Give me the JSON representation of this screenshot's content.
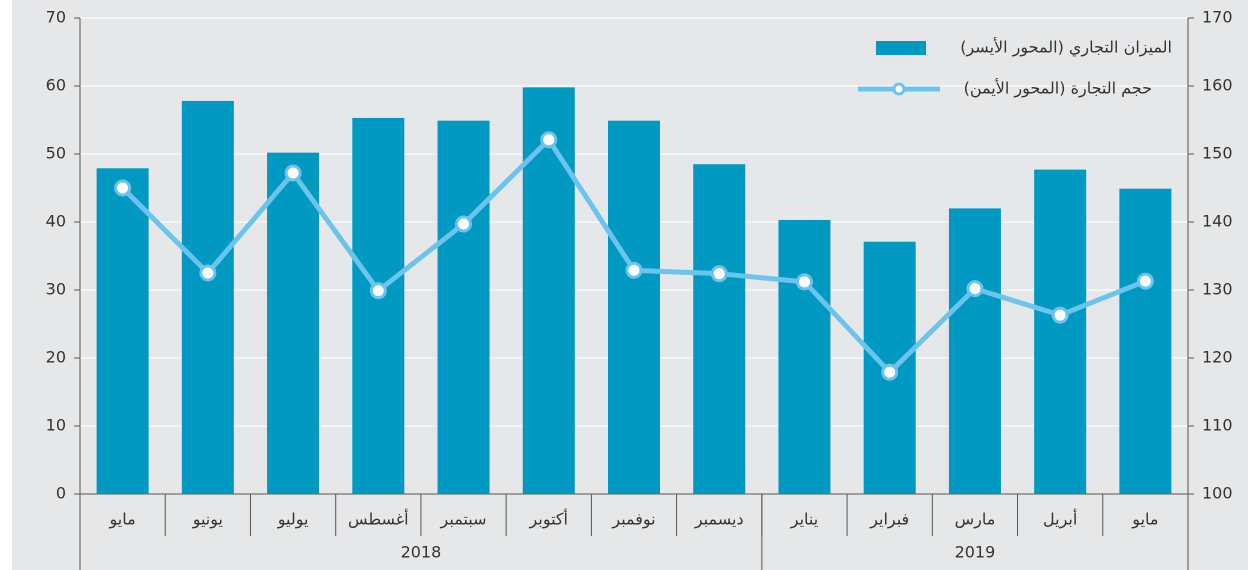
{
  "chart_data": {
    "type": "bar_line",
    "categories": [
      "مايو",
      "يونيو",
      "يوليو",
      "أغسطس",
      "سبتمبر",
      "أكتوبر",
      "نوفمبر",
      "ديسمبر",
      "يناير",
      "فبراير",
      "مارس",
      "أبريل",
      "مايو"
    ],
    "category_groups": [
      {
        "name": "2018",
        "size": 8
      },
      {
        "name": "2019",
        "size": 5
      }
    ],
    "series": [
      {
        "name": "الميزان التجاري (المحور الأيسر)",
        "type": "bar",
        "color": "#0099c2",
        "values": [
          47.9,
          57.8,
          50.2,
          55.3,
          54.9,
          59.8,
          54.9,
          48.5,
          40.3,
          37.1,
          42.0,
          47.7,
          44.9
        ]
      },
      {
        "name": "حجم التجارة (المحور الأيمن)",
        "type": "line",
        "axis": "y2",
        "color": "#6cc4ec",
        "values": [
          145,
          132.5,
          147.2,
          129.9,
          139.7,
          152.1,
          132.9,
          132.4,
          131.2,
          117.9,
          130.2,
          126.3,
          131.3
        ]
      }
    ],
    "ylim": [
      0,
      70
    ],
    "yticks": [
      0,
      10,
      20,
      30,
      40,
      50,
      60,
      70
    ],
    "y2lim": [
      100,
      170
    ],
    "y2ticks": [
      100,
      110,
      120,
      130,
      140,
      150,
      160,
      170
    ],
    "grid": true
  }
}
